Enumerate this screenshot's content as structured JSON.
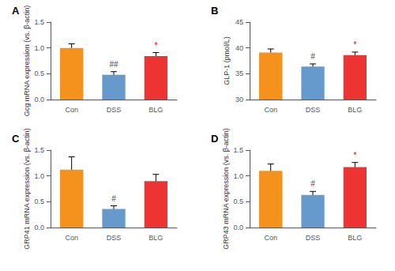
{
  "chart_data": [
    {
      "type": "bar",
      "title": "A",
      "ylabel": "Gcg mRNA expression (vs. β-actin)",
      "categories": [
        "Con",
        "DSS",
        "BLG"
      ],
      "values": [
        1.0,
        0.48,
        0.84
      ],
      "errors": [
        0.08,
        0.06,
        0.07
      ],
      "colors": [
        "#F5921E",
        "#6699CC",
        "#EE3333"
      ],
      "ylim": [
        0,
        1.5
      ],
      "yticks": [
        {
          "value": 0,
          "label": "0.0"
        },
        0.5,
        {
          "value": 1,
          "label": "1.0"
        },
        1.5
      ],
      "annotations": [
        {
          "text": "##",
          "category": "DSS",
          "color": "#555555"
        },
        {
          "text": "*",
          "category": "BLG",
          "color": "#CC2222"
        }
      ],
      "grid": false
    },
    {
      "type": "bar",
      "title": "B",
      "ylabel": "GLP-1 (pmol/L)",
      "categories": [
        "Con",
        "DSS",
        "BLG"
      ],
      "values": [
        39.1,
        36.4,
        38.6
      ],
      "errors": [
        0.7,
        0.5,
        0.6
      ],
      "colors": [
        "#F5921E",
        "#6699CC",
        "#EE3333"
      ],
      "ylim": [
        30,
        45
      ],
      "yticks": [
        30,
        35,
        40,
        45
      ],
      "annotations": [
        {
          "text": "#",
          "category": "DSS",
          "color": "#555555"
        },
        {
          "text": "*",
          "category": "BLG",
          "color": "#CC2222"
        }
      ],
      "grid": false
    },
    {
      "type": "bar",
      "title": "C",
      "ylabel": "GRP41 mRNA expression (vs. β-actin)",
      "categories": [
        "Con",
        "DSS",
        "BLG"
      ],
      "values": [
        1.12,
        0.36,
        0.9
      ],
      "errors": [
        0.25,
        0.06,
        0.13
      ],
      "colors": [
        "#F5921E",
        "#6699CC",
        "#EE3333"
      ],
      "ylim": [
        0,
        1.5
      ],
      "yticks": [
        {
          "value": 0,
          "label": "0.0"
        },
        0.5,
        {
          "value": 1,
          "label": "1.0"
        },
        1.5
      ],
      "annotations": [
        {
          "text": "#",
          "category": "DSS",
          "color": "#555555"
        }
      ],
      "grid": false
    },
    {
      "type": "bar",
      "title": "D",
      "ylabel": "GRP43 mRNA expression (vs. β-actin)",
      "categories": [
        "Con",
        "DSS",
        "BLG"
      ],
      "values": [
        1.1,
        0.63,
        1.17
      ],
      "errors": [
        0.13,
        0.07,
        0.09
      ],
      "colors": [
        "#F5921E",
        "#6699CC",
        "#EE3333"
      ],
      "ylim": [
        0,
        1.5
      ],
      "yticks": [
        {
          "value": 0,
          "label": "0.0"
        },
        0.5,
        {
          "value": 1,
          "label": "1.0"
        },
        1.5
      ],
      "annotations": [
        {
          "text": "#",
          "category": "DSS",
          "color": "#555555"
        },
        {
          "text": "*",
          "category": "BLG",
          "color": "#CC2222"
        }
      ],
      "grid": false
    }
  ]
}
